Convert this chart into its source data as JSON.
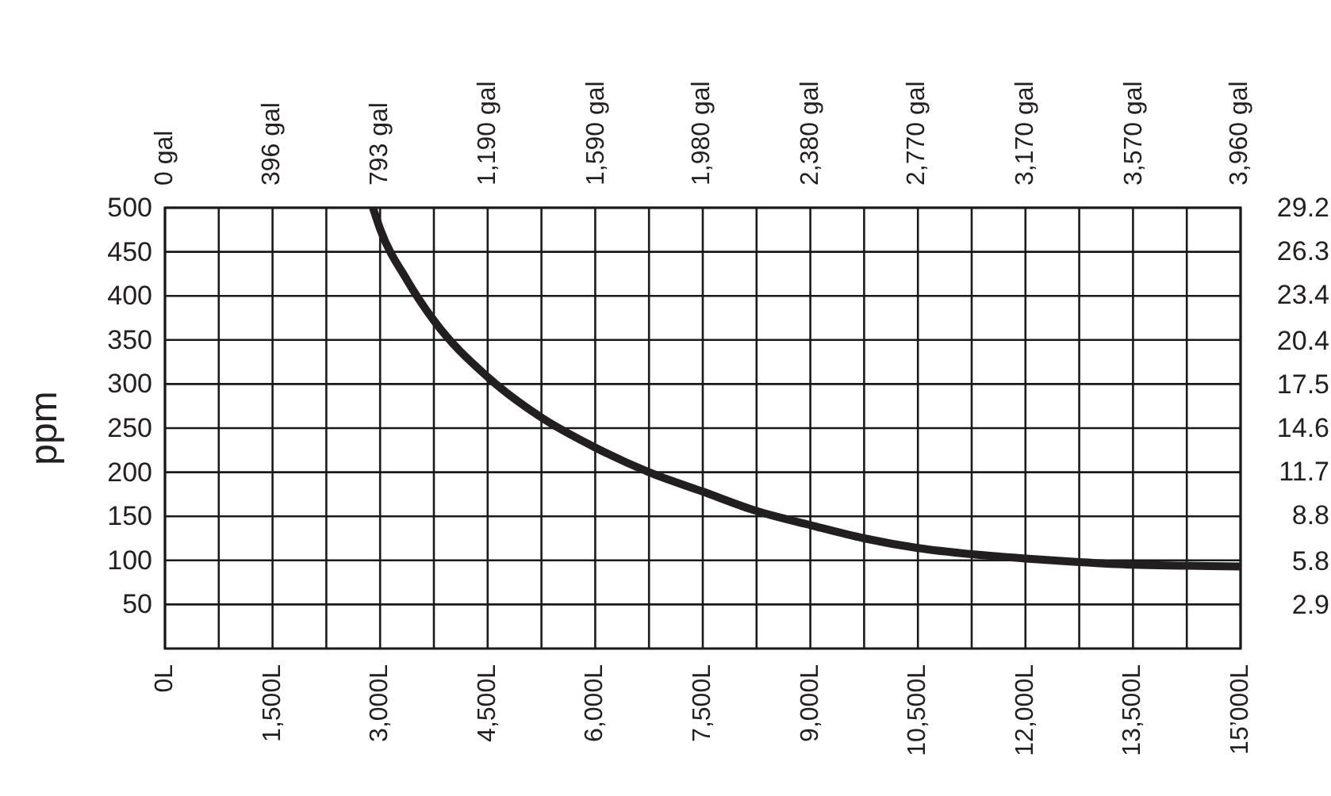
{
  "chart_data": {
    "type": "line",
    "ylabel": "ppm",
    "x": [
      2900,
      3000,
      3375,
      3750,
      4500,
      5250,
      6000,
      6750,
      7500,
      8250,
      9000,
      9750,
      10500,
      11250,
      12000,
      12750,
      13500,
      14250,
      15000
    ],
    "series": [
      {
        "color": "#231f20",
        "values": [
          500,
          476,
          418,
          372,
          308,
          262,
          228,
          200,
          178,
          156,
          140,
          125,
          114,
          107,
          102,
          98,
          95,
          94,
          93
        ]
      }
    ],
    "xlim": [
      0,
      15000
    ],
    "xticks": [
      {
        "value": 0,
        "label": "0L"
      },
      {
        "value": 750,
        "label": null
      },
      {
        "value": 1500,
        "label": "1,500L"
      },
      {
        "value": 2250,
        "label": null
      },
      {
        "value": 3000,
        "label": "3,000L"
      },
      {
        "value": 3750,
        "label": null
      },
      {
        "value": 4500,
        "label": "4,500L"
      },
      {
        "value": 5250,
        "label": null
      },
      {
        "value": 6000,
        "label": "6,000L"
      },
      {
        "value": 6750,
        "label": null
      },
      {
        "value": 7500,
        "label": "7,500L"
      },
      {
        "value": 8250,
        "label": null
      },
      {
        "value": 9000,
        "label": "9,000L"
      },
      {
        "value": 9750,
        "label": null
      },
      {
        "value": 10500,
        "label": "10,500L"
      },
      {
        "value": 11250,
        "label": null
      },
      {
        "value": 12000,
        "label": "12,000L"
      },
      {
        "value": 12750,
        "label": null
      },
      {
        "value": 13500,
        "label": "13,500L"
      },
      {
        "value": 14250,
        "label": null
      },
      {
        "value": 15000,
        "label": "15’000L"
      }
    ],
    "x2lim": [
      0,
      3963
    ],
    "x2ticks": [
      {
        "value": 0,
        "label": "0 gal"
      },
      {
        "value": 396,
        "label": "396 gal"
      },
      {
        "value": 793,
        "label": "793 gal"
      },
      {
        "value": 1190,
        "label": "1,190 gal"
      },
      {
        "value": 1590,
        "label": "1,590 gal"
      },
      {
        "value": 1980,
        "label": "1,980 gal"
      },
      {
        "value": 2380,
        "label": "2,380 gal"
      },
      {
        "value": 2770,
        "label": "2,770 gal"
      },
      {
        "value": 3170,
        "label": "3,170 gal"
      },
      {
        "value": 3570,
        "label": "3,570 gal"
      },
      {
        "value": 3960,
        "label": "3,960 gal"
      }
    ],
    "ylim": [
      0,
      500
    ],
    "yticks": [
      50,
      100,
      150,
      200,
      250,
      300,
      350,
      400,
      450,
      500
    ],
    "y2lim": [
      0,
      29.2
    ],
    "y2ticks": [
      2.9,
      5.8,
      8.8,
      11.7,
      14.6,
      17.5,
      20.4,
      23.4,
      26.3,
      29.2
    ],
    "grid": true,
    "marker": "none",
    "line_style": "solid"
  }
}
